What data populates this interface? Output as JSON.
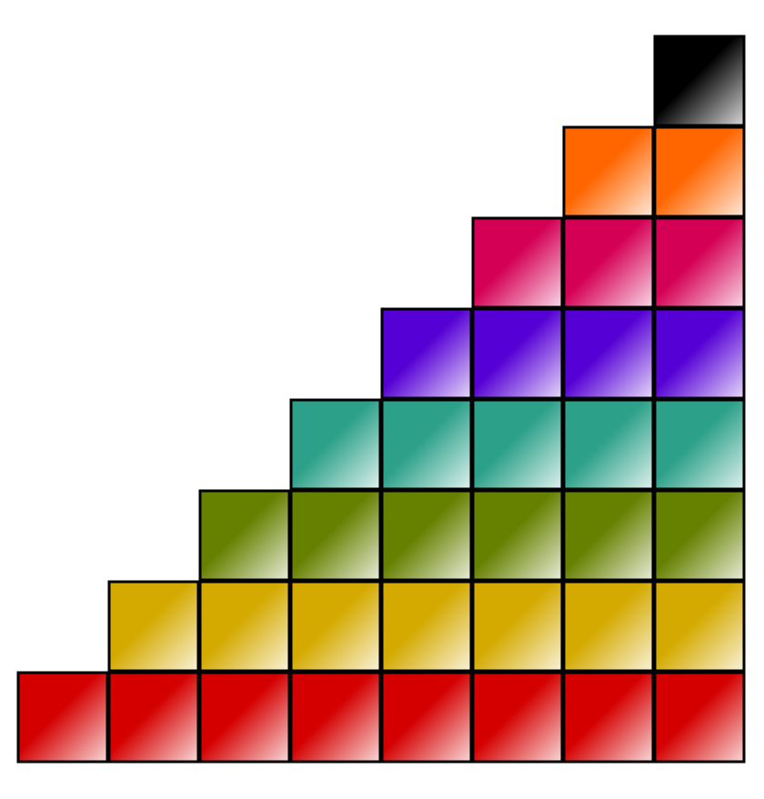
{
  "rows": [
    {
      "color": "#d40000"
    },
    {
      "color": "#d4aa00"
    },
    {
      "color": "#668000"
    },
    {
      "color": "#2ca089"
    },
    {
      "color": "#5500d4"
    },
    {
      "color": "#d40055"
    },
    {
      "color": "#ff6600"
    },
    {
      "color": "#000000"
    }
  ]
}
